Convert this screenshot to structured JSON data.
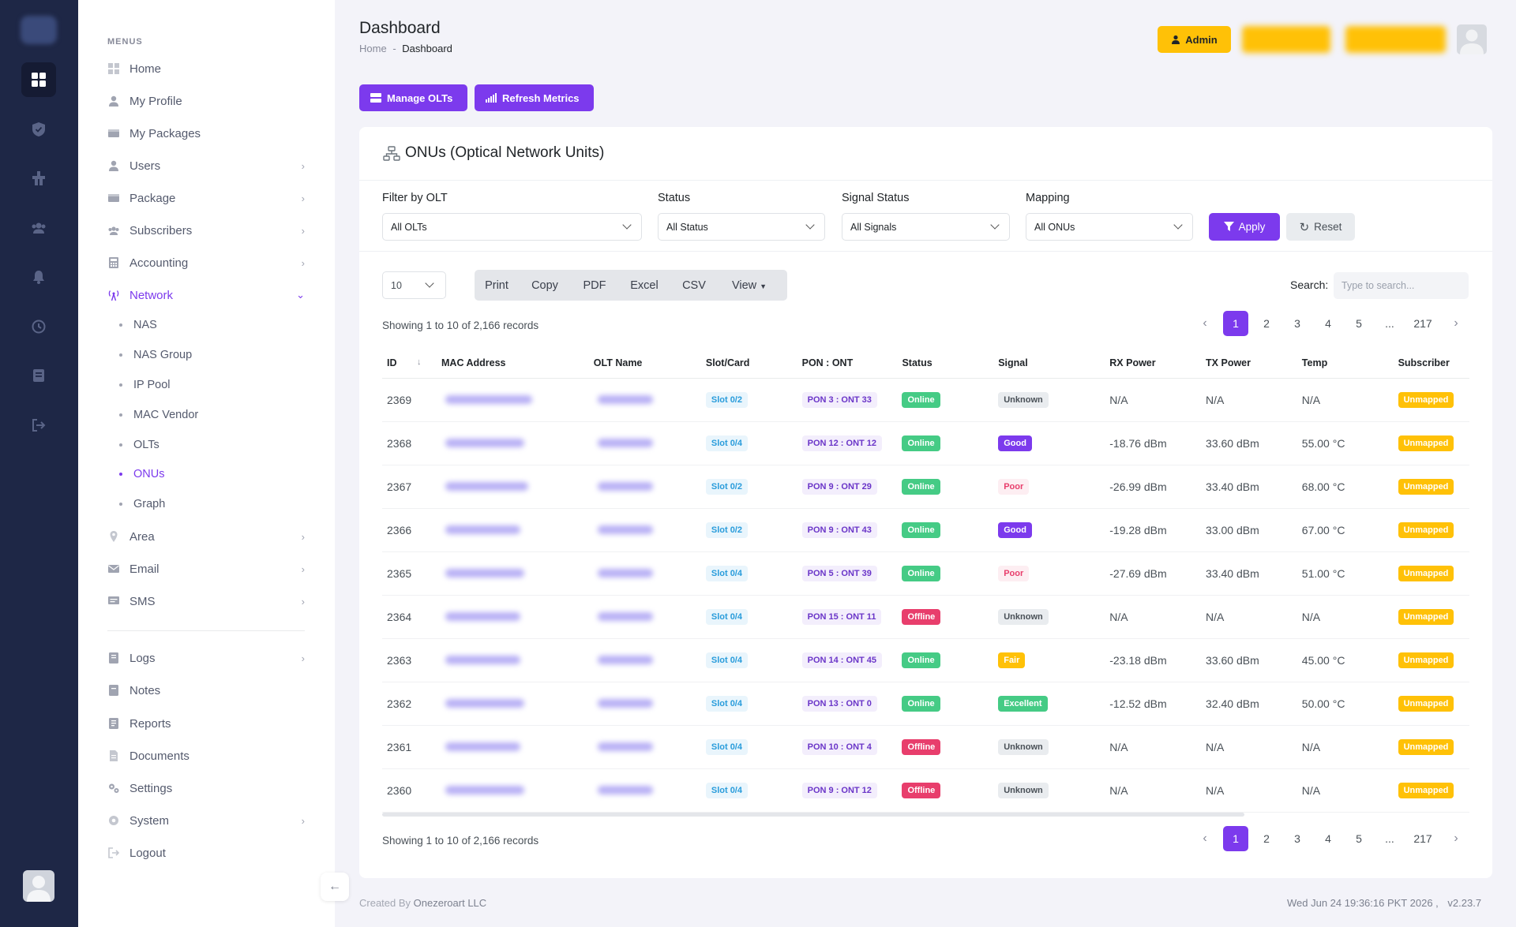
{
  "header": {
    "title": "Dashboard",
    "breadcrumb_home": "Home",
    "breadcrumb_sep": "-",
    "breadcrumb_current": "Dashboard",
    "admin_label": "Admin"
  },
  "actions": {
    "manage_olts": "Manage OLTs",
    "refresh_metrics": "Refresh Metrics"
  },
  "sidebar": {
    "menu_title": "MENUS",
    "items": [
      {
        "label": "Home",
        "icon": "grid-icon"
      },
      {
        "label": "My Profile",
        "icon": "user-icon"
      },
      {
        "label": "My Packages",
        "icon": "package-icon"
      },
      {
        "label": "Users",
        "icon": "user-icon"
      },
      {
        "label": "Package",
        "icon": "package-icon"
      },
      {
        "label": "Subscribers",
        "icon": "users-icon"
      },
      {
        "label": "Accounting",
        "icon": "calculator-icon"
      },
      {
        "label": "Network",
        "icon": "antenna-icon"
      },
      {
        "label": "Area",
        "icon": "location-icon"
      },
      {
        "label": "Email",
        "icon": "mail-icon"
      },
      {
        "label": "SMS",
        "icon": "message-icon"
      },
      {
        "label": "Logs",
        "icon": "book-icon"
      },
      {
        "label": "Notes",
        "icon": "note-icon"
      },
      {
        "label": "Reports",
        "icon": "report-icon"
      },
      {
        "label": "Documents",
        "icon": "document-icon"
      },
      {
        "label": "Settings",
        "icon": "gear-icon"
      },
      {
        "label": "System",
        "icon": "cog-icon"
      },
      {
        "label": "Logout",
        "icon": "logout-icon"
      }
    ],
    "network_sub": [
      "NAS",
      "NAS Group",
      "IP Pool",
      "MAC Vendor",
      "OLTs",
      "ONUs",
      "Graph"
    ]
  },
  "card": {
    "title": "ONUs (Optical Network Units)"
  },
  "filters": {
    "olt_label": "Filter by OLT",
    "olt_value": "All OLTs",
    "status_label": "Status",
    "status_value": "All Status",
    "signal_label": "Signal Status",
    "signal_value": "All Signals",
    "mapping_label": "Mapping",
    "mapping_value": "All ONUs",
    "apply": "Apply",
    "reset": "Reset"
  },
  "table_controls": {
    "page_length": "10",
    "export_buttons": [
      "Print",
      "Copy",
      "PDF",
      "Excel",
      "CSV",
      "View"
    ],
    "search_label": "Search:",
    "search_placeholder": "Type to search...",
    "info": "Showing 1 to 10 of 2,166 records",
    "pages": [
      "1",
      "2",
      "3",
      "4",
      "5",
      "...",
      "217"
    ]
  },
  "table": {
    "columns": [
      "ID",
      "MAC Address",
      "OLT Name",
      "Slot/Card",
      "PON : ONT",
      "Status",
      "Signal",
      "RX Power",
      "TX Power",
      "Temp",
      "Subscriber"
    ],
    "rows": [
      {
        "id": "2369",
        "slot": "Slot 0/2",
        "pon": "PON 3 : ONT 33",
        "status": "Online",
        "signal": "Unknown",
        "rx": "N/A",
        "tx": "N/A",
        "temp": "N/A",
        "subscriber": "Unmapped"
      },
      {
        "id": "2368",
        "slot": "Slot 0/4",
        "pon": "PON 12 : ONT 12",
        "status": "Online",
        "signal": "Good",
        "rx": "-18.76 dBm",
        "tx": "33.60 dBm",
        "temp": "55.00 °C",
        "subscriber": "Unmapped"
      },
      {
        "id": "2367",
        "slot": "Slot 0/2",
        "pon": "PON 9 : ONT 29",
        "status": "Online",
        "signal": "Poor",
        "rx": "-26.99 dBm",
        "tx": "33.40 dBm",
        "temp": "68.00 °C",
        "subscriber": "Unmapped"
      },
      {
        "id": "2366",
        "slot": "Slot 0/2",
        "pon": "PON 9 : ONT 43",
        "status": "Online",
        "signal": "Good",
        "rx": "-19.28 dBm",
        "tx": "33.00 dBm",
        "temp": "67.00 °C",
        "subscriber": "Unmapped"
      },
      {
        "id": "2365",
        "slot": "Slot 0/4",
        "pon": "PON 5 : ONT 39",
        "status": "Online",
        "signal": "Poor",
        "rx": "-27.69 dBm",
        "tx": "33.40 dBm",
        "temp": "51.00 °C",
        "subscriber": "Unmapped"
      },
      {
        "id": "2364",
        "slot": "Slot 0/4",
        "pon": "PON 15 : ONT 11",
        "status": "Offline",
        "signal": "Unknown",
        "rx": "N/A",
        "tx": "N/A",
        "temp": "N/A",
        "subscriber": "Unmapped"
      },
      {
        "id": "2363",
        "slot": "Slot 0/4",
        "pon": "PON 14 : ONT 45",
        "status": "Online",
        "signal": "Fair",
        "rx": "-23.18 dBm",
        "tx": "33.60 dBm",
        "temp": "45.00 °C",
        "subscriber": "Unmapped"
      },
      {
        "id": "2362",
        "slot": "Slot 0/4",
        "pon": "PON 13 : ONT 0",
        "status": "Online",
        "signal": "Excellent",
        "rx": "-12.52 dBm",
        "tx": "32.40 dBm",
        "temp": "50.00 °C",
        "subscriber": "Unmapped"
      },
      {
        "id": "2361",
        "slot": "Slot 0/4",
        "pon": "PON 10 : ONT 4",
        "status": "Offline",
        "signal": "Unknown",
        "rx": "N/A",
        "tx": "N/A",
        "temp": "N/A",
        "subscriber": "Unmapped"
      },
      {
        "id": "2360",
        "slot": "Slot 0/4",
        "pon": "PON 9 : ONT 12",
        "status": "Offline",
        "signal": "Unknown",
        "rx": "N/A",
        "tx": "N/A",
        "temp": "N/A",
        "subscriber": "Unmapped"
      }
    ]
  },
  "footer": {
    "created_by": "Created By",
    "company": "Onezeroart LLC",
    "datetime": "Wed Jun 24 19:36:16 PKT 2026 ,",
    "version": "v2.23.7"
  },
  "colors": {
    "accent": "#7c3aed",
    "rail": "#1e2746",
    "warning": "#ffc107",
    "success": "#45cb85",
    "danger": "#e83e6c"
  }
}
